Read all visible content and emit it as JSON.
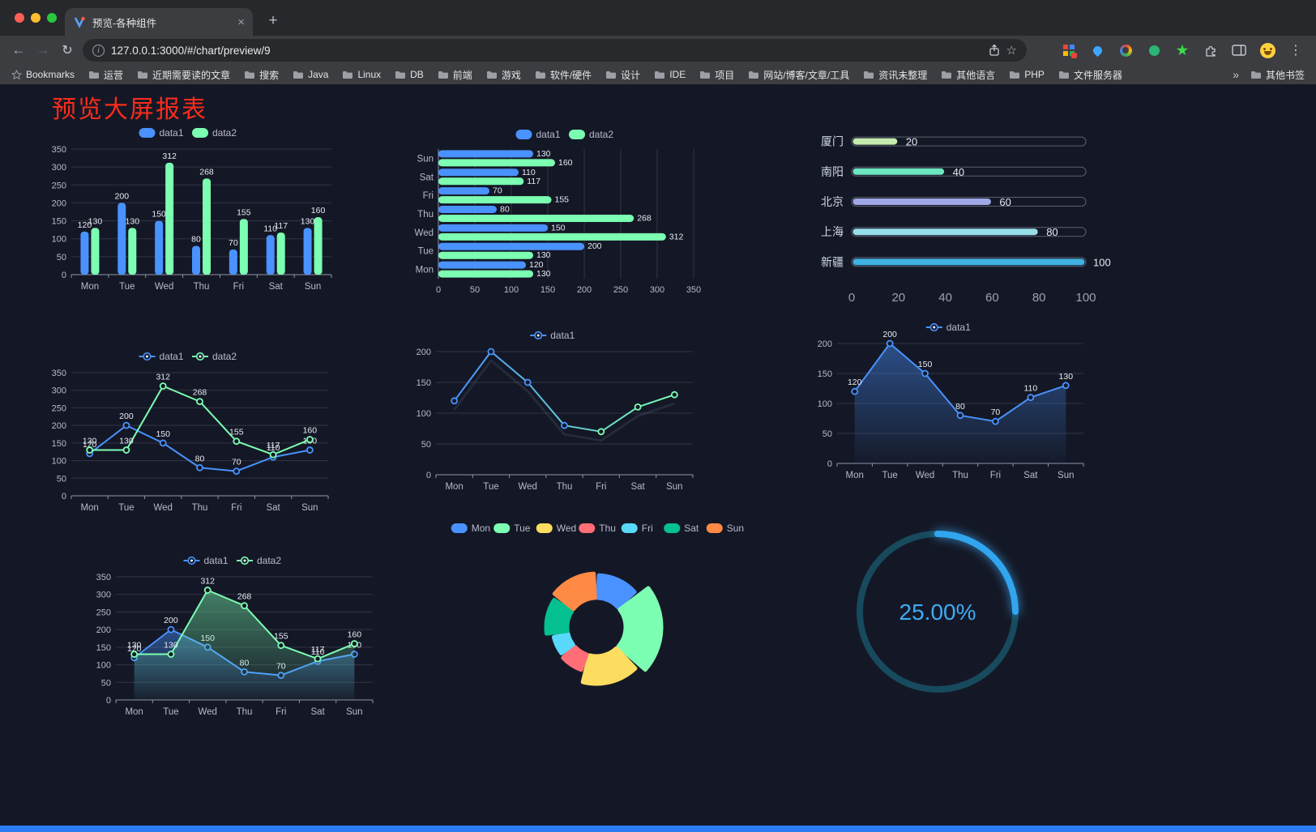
{
  "browser": {
    "tab_title": "预览-各种组件",
    "url": "127.0.0.1:3000/#/chart/preview/9",
    "bookmarks": [
      "Bookmarks",
      "运营",
      "近期需要读的文章",
      "搜索",
      "Java",
      "Linux",
      "DB",
      "前端",
      "游戏",
      "软件/硬件",
      "设计",
      "IDE",
      "项目",
      "网站/博客/文章/工具",
      "资讯未整理",
      "其他语言",
      "PHP",
      "文件服务器"
    ],
    "bookmarks_overflow": "»",
    "other_bookmarks": "其他书签"
  },
  "page": {
    "title": "预览大屏报表"
  },
  "chart_data": [
    {
      "id": "bar1",
      "type": "bar",
      "categories": [
        "Mon",
        "Tue",
        "Wed",
        "Thu",
        "Fri",
        "Sat",
        "Sun"
      ],
      "series": [
        {
          "name": "data1",
          "color": "#4992ff",
          "values": [
            120,
            200,
            150,
            80,
            70,
            110,
            130
          ]
        },
        {
          "name": "data2",
          "color": "#7cffb2",
          "values": [
            130,
            130,
            312,
            268,
            155,
            117,
            160
          ]
        }
      ],
      "ylim": [
        0,
        350
      ],
      "ytick_step": 50,
      "value_labels": true
    },
    {
      "id": "hbar1",
      "type": "hbar",
      "categories": [
        "Mon",
        "Tue",
        "Wed",
        "Thu",
        "Fri",
        "Sat",
        "Sun"
      ],
      "series": [
        {
          "name": "data1",
          "color": "#4992ff",
          "values": [
            120,
            200,
            150,
            80,
            70,
            110,
            130
          ]
        },
        {
          "name": "data2",
          "color": "#7cffb2",
          "values": [
            130,
            130,
            312,
            268,
            155,
            117,
            160
          ]
        }
      ],
      "xlim": [
        0,
        350
      ],
      "xtick_step": 50,
      "value_labels": true
    },
    {
      "id": "capsule1",
      "type": "capsule",
      "max": 100,
      "xticks": [
        0,
        20,
        40,
        60,
        80,
        100
      ],
      "items": [
        {
          "label": "厦门",
          "value": 20,
          "color": "#c4ebad"
        },
        {
          "label": "南阳",
          "value": 40,
          "color": "#6be6c1"
        },
        {
          "label": "北京",
          "value": 60,
          "color": "#a0a7e6"
        },
        {
          "label": "上海",
          "value": 80,
          "color": "#96dee8"
        },
        {
          "label": "新疆",
          "value": 100,
          "color": "#3fb1e3"
        }
      ]
    },
    {
      "id": "line2",
      "type": "line",
      "categories": [
        "Mon",
        "Tue",
        "Wed",
        "Thu",
        "Fri",
        "Sat",
        "Sun"
      ],
      "series": [
        {
          "name": "data1",
          "color": "#4992ff",
          "values": [
            120,
            200,
            150,
            80,
            70,
            110,
            130
          ]
        },
        {
          "name": "data2",
          "color": "#7cffb2",
          "values": [
            130,
            130,
            312,
            268,
            155,
            117,
            160
          ]
        }
      ],
      "ylim": [
        0,
        350
      ],
      "ytick_step": 50,
      "value_labels": true
    },
    {
      "id": "line1",
      "type": "line",
      "categories": [
        "Mon",
        "Tue",
        "Wed",
        "Thu",
        "Fri",
        "Sat",
        "Sun"
      ],
      "series": [
        {
          "name": "data1",
          "color": "#4992ff",
          "color2": "#7cffb2",
          "gradient": true,
          "values": [
            120,
            200,
            150,
            80,
            70,
            110,
            130
          ]
        }
      ],
      "ylim": [
        0,
        200
      ],
      "ytick_step": 50,
      "value_labels": false,
      "shadow": true
    },
    {
      "id": "area1",
      "type": "line",
      "categories": [
        "Mon",
        "Tue",
        "Wed",
        "Thu",
        "Fri",
        "Sat",
        "Sun"
      ],
      "series": [
        {
          "name": "data1",
          "color": "#4992ff",
          "area": true,
          "values": [
            120,
            200,
            150,
            80,
            70,
            110,
            130
          ]
        }
      ],
      "ylim": [
        0,
        200
      ],
      "ytick_step": 50,
      "value_labels": true
    },
    {
      "id": "area2",
      "type": "line",
      "categories": [
        "Mon",
        "Tue",
        "Wed",
        "Thu",
        "Fri",
        "Sat",
        "Sun"
      ],
      "series": [
        {
          "name": "data1",
          "color": "#4992ff",
          "area": true,
          "values": [
            120,
            200,
            150,
            80,
            70,
            110,
            130
          ]
        },
        {
          "name": "data2",
          "color": "#7cffb2",
          "area": true,
          "values": [
            130,
            130,
            312,
            268,
            155,
            117,
            160
          ]
        }
      ],
      "ylim": [
        0,
        350
      ],
      "ytick_step": 50,
      "value_labels": true
    },
    {
      "id": "rose1",
      "type": "pie-rose",
      "categories": [
        "Mon",
        "Tue",
        "Wed",
        "Thu",
        "Fri",
        "Sat",
        "Sun"
      ],
      "values": [
        120,
        200,
        150,
        80,
        70,
        110,
        130
      ],
      "colors": [
        "#4992ff",
        "#7cffb2",
        "#fddd60",
        "#ff6e76",
        "#58d9f9",
        "#05c091",
        "#ff8a45"
      ]
    },
    {
      "id": "gauge1",
      "type": "gauge",
      "value": 25,
      "label": "25.00%",
      "color": "#31a5ee",
      "track_color": "#174a5c"
    }
  ]
}
